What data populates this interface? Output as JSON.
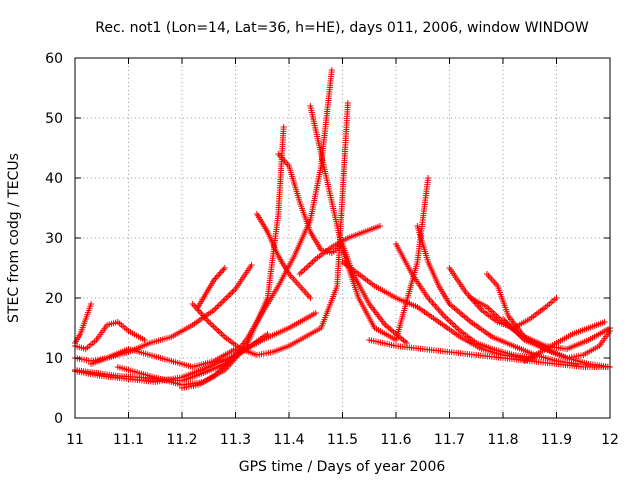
{
  "chart_data": {
    "type": "scatter",
    "title": "Rec. not1 (Lon=14, Lat=36, h=HE), days 011, 2006, window WINDOW",
    "xlabel": "GPS time / Days of year 2006",
    "ylabel": "STEC from codg / TECUs",
    "xlim": [
      11,
      12
    ],
    "ylim": [
      0,
      60
    ],
    "xticks": [
      "11",
      "11.1",
      "11.2",
      "11.3",
      "11.4",
      "11.5",
      "11.6",
      "11.7",
      "11.8",
      "11.9",
      "12"
    ],
    "yticks": [
      "0",
      "10",
      "20",
      "30",
      "40",
      "50",
      "60"
    ],
    "grid": true,
    "marker": "plus",
    "color": "#ff0000",
    "series": [
      {
        "x": [
          11.0,
          11.01,
          11.02,
          11.03
        ],
        "y": [
          12.5,
          14.0,
          16.5,
          19.0
        ]
      },
      {
        "x": [
          11.0,
          11.02,
          11.04,
          11.06,
          11.08,
          11.1,
          11.13
        ],
        "y": [
          12.0,
          11.5,
          13.0,
          15.5,
          16.0,
          14.5,
          13.0
        ]
      },
      {
        "x": [
          11.0,
          11.03,
          11.06,
          11.1,
          11.14,
          11.18,
          11.22,
          11.26,
          11.3,
          11.33
        ],
        "y": [
          10.0,
          9.5,
          10.0,
          11.0,
          12.5,
          13.5,
          15.5,
          18.0,
          21.5,
          25.5
        ]
      },
      {
        "x": [
          11.0,
          11.04,
          11.08,
          11.12,
          11.16,
          11.2,
          11.24,
          11.28,
          11.32,
          11.36
        ],
        "y": [
          8.0,
          7.5,
          7.0,
          6.8,
          6.5,
          6.2,
          7.5,
          9.0,
          11.5,
          14.0
        ]
      },
      {
        "x": [
          11.0,
          11.05,
          11.1,
          11.15,
          11.2,
          11.25,
          11.3,
          11.35,
          11.4,
          11.45
        ],
        "y": [
          7.8,
          7.0,
          6.5,
          6.0,
          6.8,
          8.5,
          10.5,
          13.0,
          15.0,
          17.5
        ]
      },
      {
        "x": [
          11.03,
          11.06,
          11.1,
          11.14,
          11.18,
          11.22,
          11.26,
          11.3
        ],
        "y": [
          9.0,
          10.0,
          11.5,
          10.5,
          9.5,
          8.5,
          9.5,
          11.5
        ]
      },
      {
        "x": [
          11.08,
          11.12,
          11.16,
          11.2,
          11.24,
          11.28,
          11.32,
          11.36,
          11.38,
          11.39
        ],
        "y": [
          8.5,
          7.5,
          6.5,
          5.5,
          6.0,
          8.0,
          12.0,
          20.0,
          34.0,
          48.5
        ]
      },
      {
        "x": [
          11.2,
          11.23,
          11.26,
          11.29,
          11.32,
          11.35,
          11.38,
          11.41,
          11.44,
          11.46,
          11.48
        ],
        "y": [
          5.0,
          5.5,
          7.0,
          9.5,
          13.0,
          17.5,
          22.0,
          27.0,
          33.0,
          42.0,
          58.0
        ]
      },
      {
        "x": [
          11.22,
          11.25,
          11.28,
          11.31,
          11.34,
          11.37,
          11.4,
          11.43,
          11.46,
          11.49,
          11.51
        ],
        "y": [
          19.0,
          16.0,
          13.5,
          11.5,
          10.5,
          11.0,
          12.0,
          13.5,
          15.0,
          22.0,
          52.5
        ]
      },
      {
        "x": [
          11.23,
          11.24,
          11.25,
          11.26,
          11.27,
          11.28
        ],
        "y": [
          18.5,
          20.0,
          21.5,
          23.0,
          24.0,
          25.0
        ]
      },
      {
        "x": [
          11.38,
          11.4,
          11.42,
          11.44,
          11.46,
          11.48,
          11.5,
          11.52,
          11.55,
          11.58,
          11.62
        ],
        "y": [
          44.0,
          42.0,
          36.0,
          31.0,
          28.0,
          27.5,
          29.0,
          24.0,
          19.0,
          15.5,
          12.5
        ]
      },
      {
        "x": [
          11.34,
          11.36,
          11.38,
          11.4,
          11.42,
          11.44
        ],
        "y": [
          34.0,
          31.0,
          27.0,
          24.0,
          22.0,
          20.0
        ]
      },
      {
        "x": [
          11.44,
          11.46,
          11.48,
          11.5,
          11.53,
          11.56,
          11.6,
          11.64,
          11.66
        ],
        "y": [
          52.0,
          44.0,
          36.0,
          28.0,
          20.0,
          15.0,
          13.0,
          26.0,
          40.0
        ]
      },
      {
        "x": [
          11.5,
          11.53,
          11.56,
          11.6,
          11.64,
          11.68,
          11.72,
          11.76,
          11.8,
          11.84
        ],
        "y": [
          26.0,
          24.0,
          22.0,
          20.0,
          18.5,
          16.0,
          13.5,
          11.5,
          10.5,
          10.0
        ]
      },
      {
        "x": [
          11.42,
          11.45,
          11.48,
          11.51,
          11.54,
          11.57
        ],
        "y": [
          24.0,
          26.5,
          28.5,
          30.0,
          31.0,
          32.0
        ]
      },
      {
        "x": [
          11.6,
          11.63,
          11.66,
          11.69,
          11.72,
          11.75,
          11.78,
          11.82,
          11.86
        ],
        "y": [
          29.0,
          24.0,
          20.0,
          17.0,
          14.5,
          12.5,
          11.5,
          10.5,
          10.0
        ]
      },
      {
        "x": [
          11.64,
          11.66,
          11.68,
          11.7,
          11.74,
          11.78,
          11.82,
          11.86,
          11.9,
          11.94
        ],
        "y": [
          32.0,
          26.0,
          22.0,
          19.0,
          16.0,
          13.5,
          12.0,
          10.5,
          9.5,
          9.0
        ]
      },
      {
        "x": [
          11.55,
          11.6,
          11.65,
          11.7,
          11.75,
          11.8,
          11.85,
          11.9,
          11.95,
          12.0
        ],
        "y": [
          13.0,
          12.0,
          11.5,
          11.0,
          10.5,
          10.0,
          9.5,
          9.0,
          8.5,
          8.5
        ]
      },
      {
        "x": [
          11.7,
          11.73,
          11.76,
          11.79,
          11.82,
          11.85,
          11.88,
          11.9
        ],
        "y": [
          25.0,
          21.0,
          18.0,
          16.0,
          15.0,
          16.5,
          18.5,
          20.0
        ]
      },
      {
        "x": [
          11.74,
          11.77,
          11.8,
          11.83,
          11.86,
          11.89,
          11.92,
          11.95,
          11.98,
          12.0
        ],
        "y": [
          20.0,
          18.5,
          16.0,
          14.0,
          12.5,
          11.0,
          10.0,
          10.5,
          12.0,
          14.5
        ]
      },
      {
        "x": [
          11.77,
          11.79,
          11.81,
          11.84,
          11.88,
          11.92,
          11.96,
          12.0
        ],
        "y": [
          24.0,
          22.0,
          17.0,
          13.5,
          12.0,
          11.5,
          13.0,
          15.0
        ]
      },
      {
        "x": [
          11.8,
          11.84,
          11.88,
          11.92,
          11.96,
          12.0
        ],
        "y": [
          16.5,
          13.0,
          11.5,
          10.0,
          9.0,
          8.5
        ]
      },
      {
        "x": [
          11.84,
          11.87,
          11.9,
          11.93,
          11.96,
          11.99
        ],
        "y": [
          9.5,
          11.0,
          12.5,
          14.0,
          15.0,
          16.0
        ]
      }
    ]
  }
}
